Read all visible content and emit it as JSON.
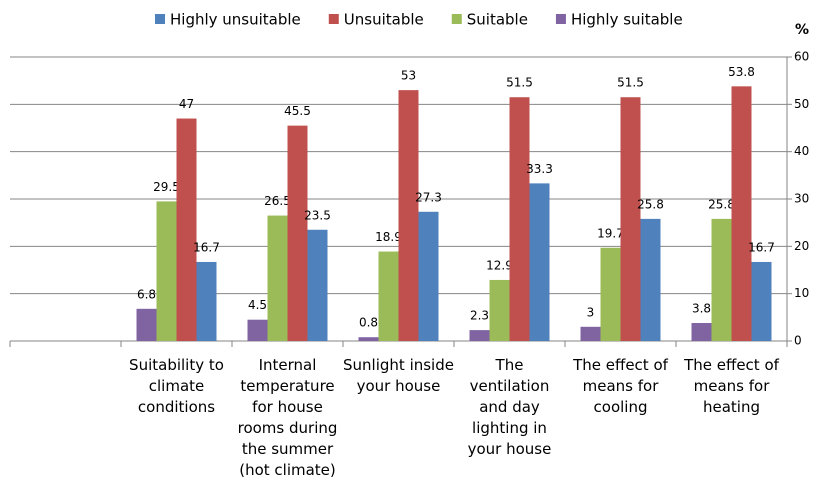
{
  "chart_data": {
    "type": "bar",
    "y_axis_label": "%",
    "categories": [
      null,
      "Suitability to climate conditions",
      "Internal temperature for house rooms during the summer (hot climate)",
      "Sunlight inside your house",
      "The ventilation and day lighting in your house",
      "The effect of means for cooling",
      "The effect of means for heating"
    ],
    "series": [
      {
        "name": "Highly unsuitable",
        "color": "#4f81bd",
        "values": [
          null,
          16.7,
          23.5,
          27.3,
          33.3,
          25.8,
          16.7
        ]
      },
      {
        "name": "Unsuitable",
        "color": "#c0504d",
        "values": [
          null,
          47,
          45.5,
          53,
          51.5,
          51.5,
          53.8
        ]
      },
      {
        "name": "Suitable",
        "color": "#9bbb59",
        "values": [
          null,
          29.5,
          26.5,
          18.9,
          12.9,
          19.7,
          25.8
        ]
      },
      {
        "name": "Highly suitable",
        "color": "#8064a2",
        "values": [
          null,
          6.8,
          4.5,
          0.8,
          2.3,
          3,
          3.8
        ]
      }
    ],
    "ylim": [
      0,
      60
    ],
    "yticks": [
      0,
      10,
      20,
      30,
      40,
      50,
      60
    ],
    "grid": true,
    "legend": "top"
  }
}
